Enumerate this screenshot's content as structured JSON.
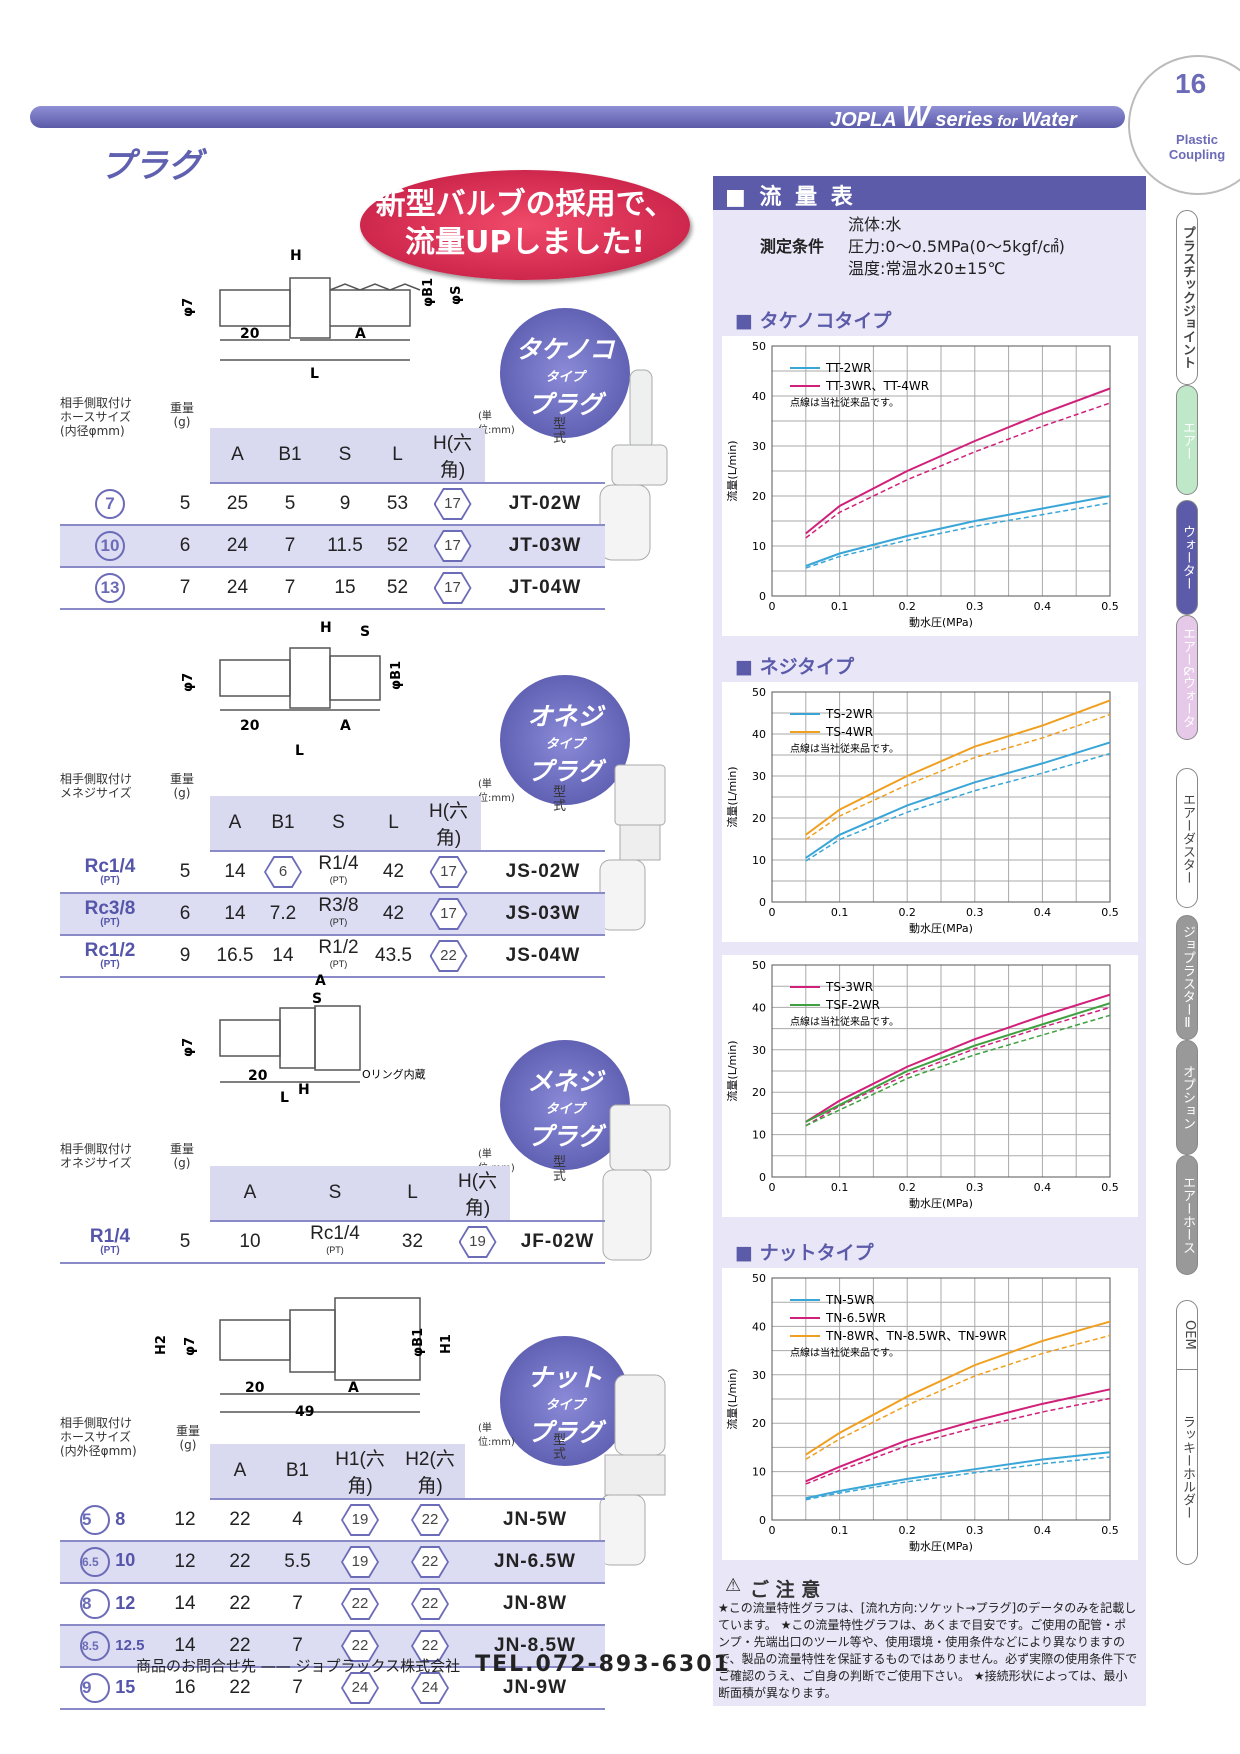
{
  "header": {
    "brand": "JOPLA",
    "w": "W",
    "series": " series",
    "for": " for ",
    "water": "Water",
    "page": "16",
    "plastic": "Plastic",
    "coupling": "Coupling"
  },
  "title": "プラグ",
  "bubble": {
    "l1": "新型バルブの採用で、",
    "l2": "流量UPしました!"
  },
  "section1": {
    "badge": [
      "タケノコ",
      "タイプ",
      "プラグ"
    ],
    "dims": {
      "h": "H",
      "phi7": "φ7",
      "b1": "φB1",
      "s": "φS",
      "d20": "20",
      "a": "A",
      "l": "L"
    },
    "headers": {
      "hose": "相手側取付け\nホースサイズ\n(内径φmm)",
      "weight": "重量\n(g)",
      "unit": "(単位:mm)",
      "model": "型 式",
      "cols": [
        "A",
        "B1",
        "S",
        "L",
        "H(六角)"
      ]
    },
    "rows": [
      [
        "7",
        "5",
        "25",
        "5",
        "9",
        "53",
        "17",
        "JT-02W"
      ],
      [
        "10",
        "6",
        "24",
        "7",
        "11.5",
        "52",
        "17",
        "JT-03W"
      ],
      [
        "13",
        "7",
        "24",
        "7",
        "15",
        "52",
        "17",
        "JT-04W"
      ]
    ]
  },
  "section2": {
    "badge": [
      "オネジ",
      "タイプ",
      "プラグ"
    ],
    "dims": {
      "h": "H",
      "s": "S",
      "phi7": "φ7",
      "b1": "φB1",
      "d20": "20",
      "a": "A",
      "l": "L"
    },
    "headers": {
      "hose": "相手側取付け\nメネジサイズ",
      "weight": "重量\n(g)",
      "unit": "(単位:mm)",
      "model": "型 式",
      "cols": [
        "A",
        "B1",
        "S",
        "L",
        "H(六角)"
      ]
    },
    "rows": [
      [
        "Rc1/4",
        "(PT)",
        "5",
        "14",
        "6",
        "R1/4",
        "(PT)",
        "42",
        "17",
        "JS-02W"
      ],
      [
        "Rc3/8",
        "(PT)",
        "6",
        "14",
        "7.2",
        "R3/8",
        "(PT)",
        "42",
        "17",
        "JS-03W"
      ],
      [
        "Rc1/2",
        "(PT)",
        "9",
        "16.5",
        "14",
        "R1/2",
        "(PT)",
        "43.5",
        "22",
        "JS-04W"
      ]
    ]
  },
  "section3": {
    "badge": [
      "メネジ",
      "タイプ",
      "プラグ"
    ],
    "dims": {
      "a": "A",
      "s": "S",
      "phi7": "φ7",
      "d20": "20",
      "h": "H",
      "l": "L",
      "oring": "Oリング内蔵"
    },
    "headers": {
      "hose": "相手側取付け\nオネジサイズ",
      "weight": "重量\n(g)",
      "unit": "(単位:mm)",
      "model": "型 式",
      "cols": [
        "A",
        "S",
        "L",
        "H(六角)"
      ]
    },
    "rows": [
      [
        "R1/4",
        "(PT)",
        "5",
        "10",
        "Rc1/4",
        "(PT)",
        "32",
        "19",
        "JF-02W"
      ]
    ]
  },
  "section4": {
    "badge": [
      "ナット",
      "タイプ",
      "プラグ"
    ],
    "dims": {
      "h2": "H2",
      "phi7": "φ7",
      "b1": "φB1",
      "h1": "H1",
      "d20": "20",
      "a": "A",
      "d49": "49"
    },
    "headers": {
      "hose": "相手側取付け\nホースサイズ\n(内外径φmm)",
      "weight": "重量\n(g)",
      "unit": "(単位:mm)",
      "model": "型 式",
      "cols": [
        "A",
        "B1",
        "H1(六角)",
        "H2(六角)"
      ]
    },
    "rows": [
      [
        "5",
        "8",
        "12",
        "22",
        "4",
        "19",
        "22",
        "JN-5W"
      ],
      [
        "6.5",
        "10",
        "12",
        "22",
        "5.5",
        "19",
        "22",
        "JN-6.5W"
      ],
      [
        "8",
        "12",
        "14",
        "22",
        "7",
        "22",
        "22",
        "JN-8W"
      ],
      [
        "8.5",
        "12.5",
        "14",
        "22",
        "7",
        "22",
        "22",
        "JN-8.5W"
      ],
      [
        "9",
        "15",
        "16",
        "22",
        "7",
        "24",
        "24",
        "JN-9W"
      ]
    ]
  },
  "panel": {
    "title": "■ 流 量 表",
    "cond_label": "測定条件",
    "cond": [
      "流体:水",
      "圧力:0〜0.5MPa(0〜5kgf/㎠)",
      "温度:常温水20±15℃"
    ]
  },
  "chart_data": [
    {
      "type": "line",
      "title": "■ タケノコタイプ",
      "xlabel": "動水圧(MPa)",
      "ylabel": "流量(L/min)",
      "xlim": [
        0,
        0.5
      ],
      "ylim": [
        0,
        50
      ],
      "note": "点線は当社従来品です。",
      "series": [
        {
          "name": "TT-2WR",
          "color": "#3aa6d8",
          "x": [
            0.05,
            0.1,
            0.2,
            0.3,
            0.4,
            0.5
          ],
          "y": [
            6,
            8.5,
            12,
            15,
            17.5,
            20
          ]
        },
        {
          "name": "TT-3WR、TT-4WR",
          "color": "#d0207a",
          "x": [
            0.05,
            0.1,
            0.2,
            0.3,
            0.4,
            0.5
          ],
          "y": [
            12.5,
            18,
            25,
            31,
            36.5,
            41.5
          ]
        }
      ]
    },
    {
      "type": "line",
      "title": "■ ネジタイプ",
      "xlabel": "動水圧(MPa)",
      "ylabel": "流量(L/min)",
      "xlim": [
        0,
        0.5
      ],
      "ylim": [
        0,
        50
      ],
      "note": "点線は当社従来品です。",
      "series": [
        {
          "name": "TS-2WR",
          "color": "#3aa6d8",
          "x": [
            0.05,
            0.1,
            0.2,
            0.3,
            0.4,
            0.5
          ],
          "y": [
            10.5,
            16,
            23,
            28.5,
            33,
            38
          ]
        },
        {
          "name": "TS-4WR",
          "color": "#f0a020",
          "x": [
            0.05,
            0.1,
            0.2,
            0.3,
            0.4,
            0.5
          ],
          "y": [
            16,
            22,
            30,
            37,
            42,
            48
          ]
        }
      ]
    },
    {
      "type": "line",
      "xlabel": "動水圧(MPa)",
      "ylabel": "流量(L/min)",
      "xlim": [
        0,
        0.5
      ],
      "ylim": [
        0,
        50
      ],
      "note": "点線は当社従来品です。",
      "series": [
        {
          "name": "TS-3WR",
          "color": "#d0207a",
          "x": [
            0.05,
            0.1,
            0.2,
            0.3,
            0.4,
            0.5
          ],
          "y": [
            13,
            18,
            26,
            32.5,
            38,
            43
          ]
        },
        {
          "name": "TSF-2WR",
          "color": "#40a040",
          "x": [
            0.05,
            0.1,
            0.2,
            0.3,
            0.4,
            0.5
          ],
          "y": [
            13,
            17,
            25,
            31,
            36,
            41
          ]
        }
      ]
    },
    {
      "type": "line",
      "title": "■ ナットタイプ",
      "xlabel": "動水圧(MPa)",
      "ylabel": "流量(L/min)",
      "xlim": [
        0,
        0.5
      ],
      "ylim": [
        0,
        50
      ],
      "note": "点線は当社従来品です。",
      "series": [
        {
          "name": "TN-5WR",
          "color": "#3aa6d8",
          "x": [
            0.05,
            0.1,
            0.2,
            0.3,
            0.4,
            0.5
          ],
          "y": [
            4.5,
            6,
            8.5,
            10.5,
            12.5,
            14
          ]
        },
        {
          "name": "TN-6.5WR",
          "color": "#d0207a",
          "x": [
            0.05,
            0.1,
            0.2,
            0.3,
            0.4,
            0.5
          ],
          "y": [
            8,
            11,
            16.5,
            20.5,
            24,
            27
          ]
        },
        {
          "name": "TN-8WR、TN-8.5WR、TN-9WR",
          "color": "#f0a020",
          "x": [
            0.05,
            0.1,
            0.2,
            0.3,
            0.4,
            0.5
          ],
          "y": [
            13.5,
            18,
            25.5,
            32,
            37,
            41
          ]
        }
      ]
    }
  ],
  "axis_ticks": {
    "x": [
      "0",
      "0.1",
      "0.2",
      "0.3",
      "0.4",
      "0.5"
    ],
    "y": [
      "0",
      "10",
      "20",
      "30",
      "40",
      "50"
    ]
  },
  "caution": {
    "title": "ご 注 意",
    "text": "★この流量特性グラフは、[流れ方向:ソケット→プラグ]のデータのみを記載しています。 ★この流量特性グラフは、あくまで目安です。ご使用の配管・ポンプ・先端出口のツール等や、使用環境・使用条件などにより異なりますので、製品の流量特性を保証するものではありません。必ず実際の使用条件下でご確認のうえ、ご自身の判断でご使用下さい。 ★接続形状によっては、最小断面積が異なります。"
  },
  "footer": {
    "label": "商品のお問合せ先 —— ジョプラックス株式会社",
    "tel": "TEL.072-893-6301"
  },
  "side_tabs": [
    "プラスチックジョイント",
    "エアー",
    "ウォーター",
    "エアー&ウォーター",
    "エアーダスター",
    "ジョプラスターⅡ",
    "オプション",
    "エアーホース",
    "OEM",
    "ラッキーホルダー"
  ]
}
